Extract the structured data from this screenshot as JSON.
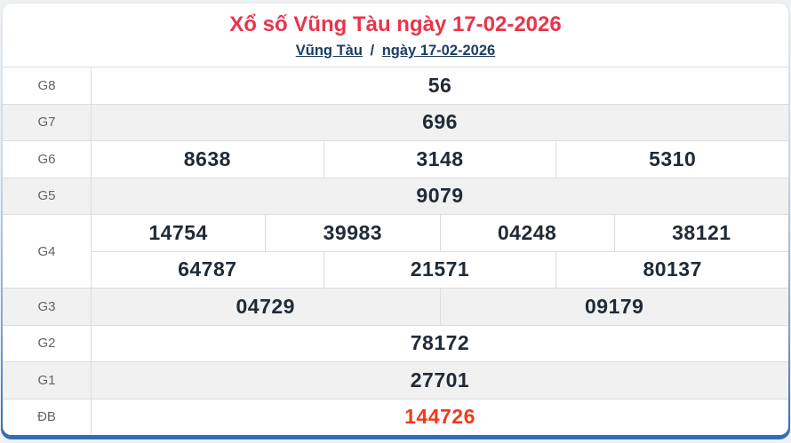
{
  "header": {
    "title": "Xổ số Vũng Tàu ngày 17-02-2026",
    "breadcrumb": {
      "region_link": "Vũng Tàu",
      "separator": "/",
      "date_link": "ngày 17-02-2026"
    }
  },
  "colors": {
    "title_red": "#e8354b",
    "special_red": "#ef3a1b",
    "link_navy": "#1c3e63",
    "value_dark": "#212b36",
    "row_alt_bg": "#f1f1f1",
    "grid_line": "#dcdcdc",
    "border_blue": "#2f6cb3",
    "page_bg": "#eef0f2"
  },
  "results": {
    "g8": {
      "label": "G8",
      "values": [
        "56"
      ]
    },
    "g7": {
      "label": "G7",
      "values": [
        "696"
      ]
    },
    "g6": {
      "label": "G6",
      "values": [
        "8638",
        "3148",
        "5310"
      ]
    },
    "g5": {
      "label": "G5",
      "values": [
        "9079"
      ]
    },
    "g4": {
      "label": "G4",
      "row1": [
        "14754",
        "39983",
        "04248",
        "38121"
      ],
      "row2": [
        "64787",
        "21571",
        "80137"
      ]
    },
    "g3": {
      "label": "G3",
      "values": [
        "04729",
        "09179"
      ]
    },
    "g2": {
      "label": "G2",
      "values": [
        "78172"
      ]
    },
    "g1": {
      "label": "G1",
      "values": [
        "27701"
      ]
    },
    "db": {
      "label": "ĐB",
      "values": [
        "144726"
      ]
    }
  }
}
